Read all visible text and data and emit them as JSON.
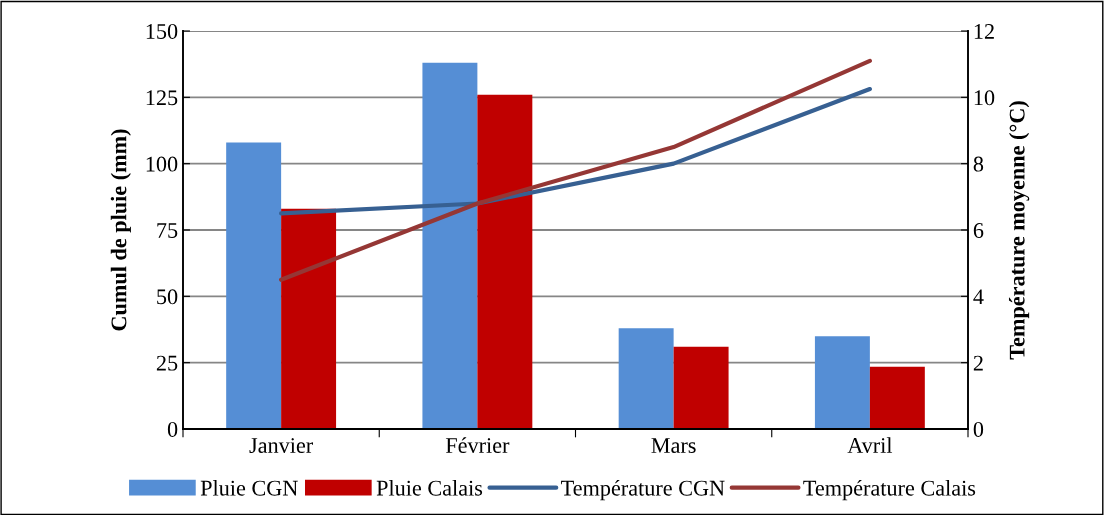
{
  "chart_data": {
    "type": "bar",
    "categories": [
      "Janvier",
      "Février",
      "Mars",
      "Avril"
    ],
    "ylabel": "Cumul de pluie (mm)",
    "y2label": "Température moyenne (°C)",
    "series": [
      {
        "name": "Pluie CGN",
        "color": "#558ed5",
        "values": [
          108,
          138,
          38,
          35
        ]
      },
      {
        "name": "Pluie Calais",
        "color": "#c00000",
        "values": [
          83,
          126,
          31,
          23.5
        ]
      },
      {
        "name": "Température CGN",
        "type": "line",
        "axis": "y2",
        "color": "#376092",
        "values": [
          6.5,
          6.8,
          8,
          10.25
        ]
      },
      {
        "name": "Température Calais",
        "type": "line",
        "axis": "y2",
        "color": "#953735",
        "values": [
          4.5,
          6.8,
          8.5,
          11.1
        ]
      }
    ],
    "ylim": [
      0,
      150
    ],
    "yticks": [
      0,
      25,
      50,
      75,
      100,
      125,
      150
    ],
    "y2lim": [
      0,
      12
    ],
    "y2ticks": [
      0,
      2,
      4,
      6,
      8,
      10,
      12
    ],
    "grid": "y",
    "legend": "bottom",
    "marker": "none",
    "line_style": "solid"
  }
}
